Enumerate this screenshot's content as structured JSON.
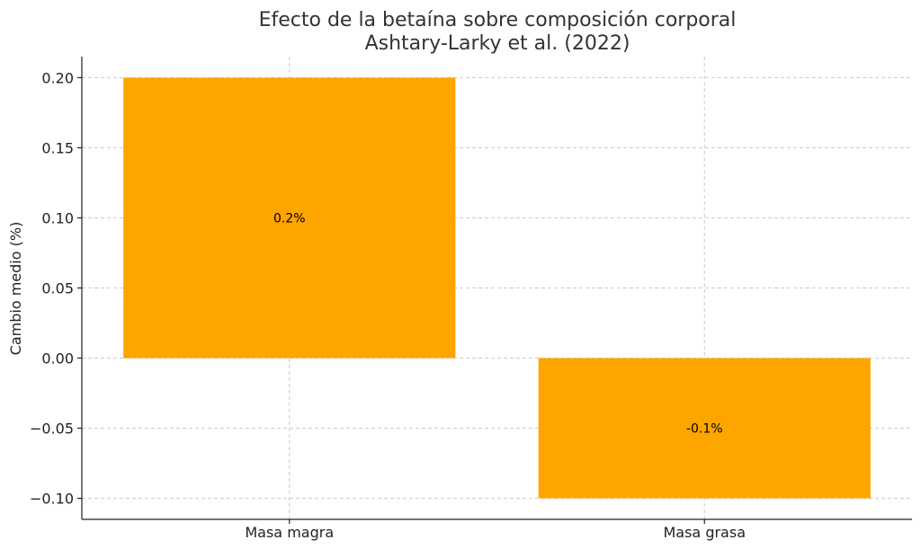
{
  "chart_data": {
    "type": "bar",
    "title": "Efecto de la betaína sobre composición corporal",
    "subtitle": "Ashtary-Larky et al. (2022)",
    "xlabel": "",
    "ylabel": "Cambio medio (%)",
    "categories": [
      "Masa magra",
      "Masa grasa"
    ],
    "values": [
      0.2,
      -0.1
    ],
    "data_labels": [
      "0.2%",
      "-0.1%"
    ],
    "ylim": [
      -0.115,
      0.215
    ],
    "yticks": [
      0.2,
      0.15,
      0.1,
      0.05,
      0.0,
      -0.05,
      -0.1
    ],
    "ytick_labels": [
      "0.20",
      "0.15",
      "0.10",
      "0.05",
      "0.00",
      "−0.05",
      "−0.10"
    ],
    "grid": true,
    "bar_color": "#FFA500"
  }
}
